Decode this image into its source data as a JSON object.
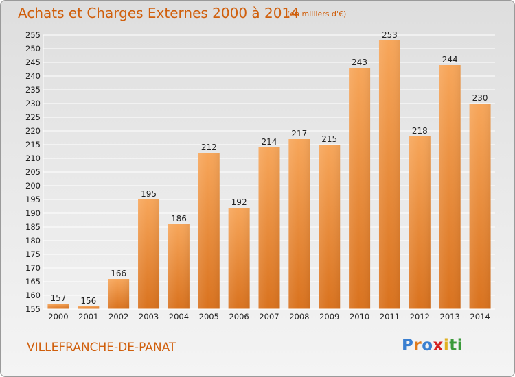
{
  "header": {
    "title": "Achats et Charges Externes 2000 à 2014",
    "unit": "(en milliers d'€)"
  },
  "footer": {
    "commune": "VILLEFRANCHE-DE-PANAT",
    "logo": {
      "text": "Proxiti",
      "letter_colors": [
        "#3a7fd0",
        "#e07a1a",
        "#3a7fd0",
        "#d42020",
        "#e0b020",
        "#3a9a3a",
        "#3a9a3a"
      ]
    }
  },
  "colors": {
    "bar_top": "#f7a65a",
    "bar_bottom": "#d9721e",
    "grid": "#ffffff",
    "axis_text": "#222222"
  },
  "chart_data": {
    "type": "bar",
    "categories": [
      "2000",
      "2001",
      "2002",
      "2003",
      "2004",
      "2005",
      "2006",
      "2007",
      "2008",
      "2009",
      "2010",
      "2011",
      "2012",
      "2013",
      "2014"
    ],
    "values": [
      157,
      156,
      166,
      195,
      186,
      212,
      192,
      214,
      217,
      215,
      243,
      253,
      218,
      244,
      230
    ],
    "data_labels": [
      "157",
      "156",
      "166",
      "195",
      "186",
      "212",
      "192",
      "214",
      "217",
      "215",
      "243",
      "253",
      "218",
      "244",
      "230"
    ],
    "y_ticks": [
      155,
      160,
      165,
      170,
      175,
      180,
      185,
      190,
      195,
      200,
      205,
      210,
      215,
      220,
      225,
      230,
      235,
      240,
      245,
      250,
      255
    ],
    "ylim": [
      155,
      255
    ],
    "grid": true,
    "title": "Achats et Charges Externes 2000 à 2014",
    "xlabel": "",
    "ylabel": ""
  }
}
